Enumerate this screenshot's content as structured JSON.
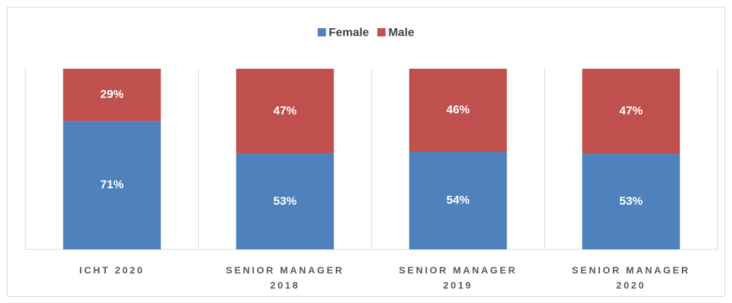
{
  "chart_data": {
    "type": "bar",
    "stacked": true,
    "categories": [
      "ICHT 2020",
      "SENIOR MANAGER 2018",
      "SENIOR MANAGER 2019",
      "SENIOR MANAGER 2020"
    ],
    "series": [
      {
        "name": "Female",
        "color": "#4f81bd",
        "values": [
          71,
          53,
          54,
          53
        ],
        "value_labels": [
          "71%",
          "53%",
          "54%",
          "53%"
        ]
      },
      {
        "name": "Male",
        "color": "#c0504d",
        "values": [
          29,
          47,
          46,
          47
        ],
        "value_labels": [
          "29%",
          "47%",
          "46%",
          "47%"
        ]
      }
    ],
    "ylim": [
      0,
      100
    ],
    "legend": "top"
  }
}
